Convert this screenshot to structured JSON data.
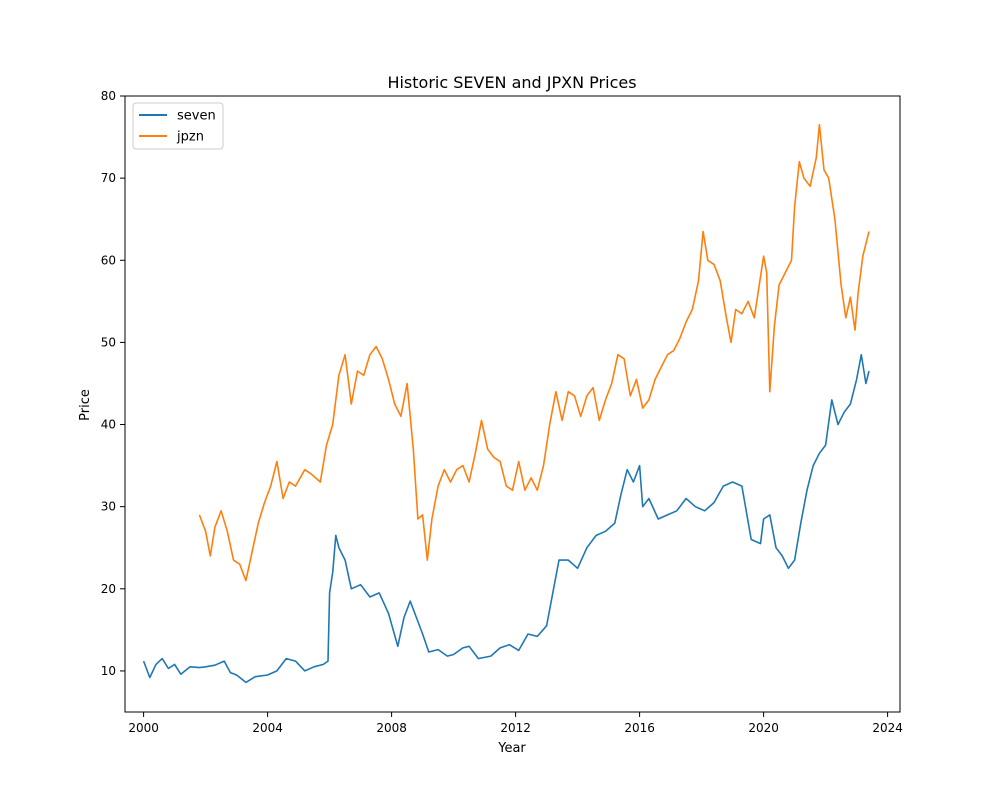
{
  "chart_data": {
    "type": "line",
    "title": "Historic SEVEN and JPXN Prices",
    "xlabel": "Year",
    "ylabel": "Price",
    "xlim": [
      1999.4,
      2024.4
    ],
    "ylim": [
      5,
      80
    ],
    "xticks": [
      2000,
      2004,
      2008,
      2012,
      2016,
      2020,
      2024
    ],
    "yticks": [
      10,
      20,
      30,
      40,
      50,
      60,
      70,
      80
    ],
    "grid": false,
    "legend": "top-left",
    "series": [
      {
        "name": "seven",
        "color": "#1f77b4",
        "points": [
          [
            2000.0,
            11.2
          ],
          [
            2000.2,
            9.2
          ],
          [
            2000.4,
            10.8
          ],
          [
            2000.6,
            11.5
          ],
          [
            2000.8,
            10.3
          ],
          [
            2001.0,
            10.8
          ],
          [
            2001.2,
            9.6
          ],
          [
            2001.5,
            10.5
          ],
          [
            2001.8,
            10.4
          ],
          [
            2002.0,
            10.5
          ],
          [
            2002.3,
            10.7
          ],
          [
            2002.6,
            11.2
          ],
          [
            2002.8,
            9.8
          ],
          [
            2003.0,
            9.5
          ],
          [
            2003.3,
            8.6
          ],
          [
            2003.6,
            9.3
          ],
          [
            2004.0,
            9.5
          ],
          [
            2004.3,
            10.0
          ],
          [
            2004.6,
            11.5
          ],
          [
            2004.9,
            11.2
          ],
          [
            2005.2,
            10.0
          ],
          [
            2005.5,
            10.5
          ],
          [
            2005.8,
            10.8
          ],
          [
            2005.95,
            11.2
          ],
          [
            2006.0,
            19.5
          ],
          [
            2006.1,
            22.0
          ],
          [
            2006.2,
            26.5
          ],
          [
            2006.3,
            25.0
          ],
          [
            2006.5,
            23.5
          ],
          [
            2006.7,
            20.0
          ],
          [
            2007.0,
            20.5
          ],
          [
            2007.3,
            19.0
          ],
          [
            2007.6,
            19.5
          ],
          [
            2007.9,
            17.0
          ],
          [
            2008.2,
            13.0
          ],
          [
            2008.4,
            16.5
          ],
          [
            2008.6,
            18.5
          ],
          [
            2008.8,
            16.5
          ],
          [
            2009.0,
            14.5
          ],
          [
            2009.2,
            12.3
          ],
          [
            2009.5,
            12.6
          ],
          [
            2009.8,
            11.8
          ],
          [
            2010.0,
            12.0
          ],
          [
            2010.3,
            12.8
          ],
          [
            2010.5,
            13.0
          ],
          [
            2010.8,
            11.5
          ],
          [
            2011.2,
            11.8
          ],
          [
            2011.5,
            12.8
          ],
          [
            2011.8,
            13.2
          ],
          [
            2012.1,
            12.5
          ],
          [
            2012.4,
            14.5
          ],
          [
            2012.7,
            14.2
          ],
          [
            2013.0,
            15.5
          ],
          [
            2013.2,
            19.5
          ],
          [
            2013.4,
            23.5
          ],
          [
            2013.7,
            23.5
          ],
          [
            2014.0,
            22.5
          ],
          [
            2014.3,
            25.0
          ],
          [
            2014.6,
            26.5
          ],
          [
            2014.9,
            27.0
          ],
          [
            2015.2,
            28.0
          ],
          [
            2015.4,
            31.5
          ],
          [
            2015.6,
            34.5
          ],
          [
            2015.8,
            33.0
          ],
          [
            2016.0,
            35.0
          ],
          [
            2016.1,
            30.0
          ],
          [
            2016.3,
            31.0
          ],
          [
            2016.6,
            28.5
          ],
          [
            2016.9,
            29.0
          ],
          [
            2017.2,
            29.5
          ],
          [
            2017.5,
            31.0
          ],
          [
            2017.8,
            30.0
          ],
          [
            2018.1,
            29.5
          ],
          [
            2018.4,
            30.5
          ],
          [
            2018.7,
            32.5
          ],
          [
            2019.0,
            33.0
          ],
          [
            2019.3,
            32.5
          ],
          [
            2019.6,
            26.0
          ],
          [
            2019.9,
            25.5
          ],
          [
            2020.0,
            28.5
          ],
          [
            2020.2,
            29.0
          ],
          [
            2020.4,
            25.0
          ],
          [
            2020.6,
            24.0
          ],
          [
            2020.8,
            22.5
          ],
          [
            2021.0,
            23.5
          ],
          [
            2021.2,
            28.0
          ],
          [
            2021.4,
            32.0
          ],
          [
            2021.6,
            35.0
          ],
          [
            2021.8,
            36.5
          ],
          [
            2022.0,
            37.5
          ],
          [
            2022.2,
            43.0
          ],
          [
            2022.4,
            40.0
          ],
          [
            2022.6,
            41.5
          ],
          [
            2022.8,
            42.5
          ],
          [
            2023.0,
            45.5
          ],
          [
            2023.15,
            48.5
          ],
          [
            2023.3,
            45.0
          ],
          [
            2023.4,
            46.5
          ]
        ]
      },
      {
        "name": "jpzn",
        "color": "#ff7f0e",
        "points": [
          [
            2001.8,
            29.0
          ],
          [
            2002.0,
            27.0
          ],
          [
            2002.15,
            24.0
          ],
          [
            2002.3,
            27.5
          ],
          [
            2002.5,
            29.5
          ],
          [
            2002.7,
            27.0
          ],
          [
            2002.9,
            23.5
          ],
          [
            2003.1,
            23.0
          ],
          [
            2003.3,
            21.0
          ],
          [
            2003.5,
            24.5
          ],
          [
            2003.7,
            28.0
          ],
          [
            2003.9,
            30.5
          ],
          [
            2004.1,
            32.5
          ],
          [
            2004.3,
            35.5
          ],
          [
            2004.5,
            31.0
          ],
          [
            2004.7,
            33.0
          ],
          [
            2004.9,
            32.5
          ],
          [
            2005.2,
            34.5
          ],
          [
            2005.4,
            34.0
          ],
          [
            2005.7,
            33.0
          ],
          [
            2005.9,
            37.5
          ],
          [
            2006.1,
            40.0
          ],
          [
            2006.3,
            46.0
          ],
          [
            2006.5,
            48.5
          ],
          [
            2006.7,
            42.5
          ],
          [
            2006.9,
            46.5
          ],
          [
            2007.1,
            46.0
          ],
          [
            2007.3,
            48.5
          ],
          [
            2007.5,
            49.5
          ],
          [
            2007.7,
            48.0
          ],
          [
            2007.9,
            45.5
          ],
          [
            2008.1,
            42.5
          ],
          [
            2008.3,
            41.0
          ],
          [
            2008.5,
            45.0
          ],
          [
            2008.7,
            37.0
          ],
          [
            2008.85,
            28.5
          ],
          [
            2009.0,
            29.0
          ],
          [
            2009.15,
            23.5
          ],
          [
            2009.3,
            28.5
          ],
          [
            2009.5,
            32.5
          ],
          [
            2009.7,
            34.5
          ],
          [
            2009.9,
            33.0
          ],
          [
            2010.1,
            34.5
          ],
          [
            2010.3,
            35.0
          ],
          [
            2010.5,
            33.0
          ],
          [
            2010.7,
            36.5
          ],
          [
            2010.9,
            40.5
          ],
          [
            2011.1,
            37.0
          ],
          [
            2011.3,
            36.0
          ],
          [
            2011.5,
            35.5
          ],
          [
            2011.7,
            32.5
          ],
          [
            2011.9,
            32.0
          ],
          [
            2012.1,
            35.5
          ],
          [
            2012.3,
            32.0
          ],
          [
            2012.5,
            33.5
          ],
          [
            2012.7,
            32.0
          ],
          [
            2012.9,
            35.0
          ],
          [
            2013.1,
            40.0
          ],
          [
            2013.3,
            44.0
          ],
          [
            2013.5,
            40.5
          ],
          [
            2013.7,
            44.0
          ],
          [
            2013.9,
            43.5
          ],
          [
            2014.1,
            41.0
          ],
          [
            2014.3,
            43.5
          ],
          [
            2014.5,
            44.5
          ],
          [
            2014.7,
            40.5
          ],
          [
            2014.9,
            43.0
          ],
          [
            2015.1,
            45.0
          ],
          [
            2015.3,
            48.5
          ],
          [
            2015.5,
            48.0
          ],
          [
            2015.7,
            43.5
          ],
          [
            2015.9,
            45.5
          ],
          [
            2016.1,
            42.0
          ],
          [
            2016.3,
            43.0
          ],
          [
            2016.5,
            45.5
          ],
          [
            2016.7,
            47.0
          ],
          [
            2016.9,
            48.5
          ],
          [
            2017.1,
            49.0
          ],
          [
            2017.3,
            50.5
          ],
          [
            2017.5,
            52.5
          ],
          [
            2017.7,
            54.0
          ],
          [
            2017.9,
            57.5
          ],
          [
            2018.05,
            63.5
          ],
          [
            2018.2,
            60.0
          ],
          [
            2018.4,
            59.5
          ],
          [
            2018.6,
            57.5
          ],
          [
            2018.8,
            53.0
          ],
          [
            2018.95,
            50.0
          ],
          [
            2019.1,
            54.0
          ],
          [
            2019.3,
            53.5
          ],
          [
            2019.5,
            55.0
          ],
          [
            2019.7,
            53.0
          ],
          [
            2019.9,
            58.0
          ],
          [
            2020.0,
            60.5
          ],
          [
            2020.1,
            58.5
          ],
          [
            2020.2,
            44.0
          ],
          [
            2020.35,
            52.0
          ],
          [
            2020.5,
            57.0
          ],
          [
            2020.7,
            58.5
          ],
          [
            2020.9,
            60.0
          ],
          [
            2021.0,
            66.5
          ],
          [
            2021.15,
            72.0
          ],
          [
            2021.3,
            70.0
          ],
          [
            2021.5,
            69.0
          ],
          [
            2021.7,
            72.5
          ],
          [
            2021.8,
            76.5
          ],
          [
            2021.95,
            71.0
          ],
          [
            2022.1,
            70.0
          ],
          [
            2022.3,
            65.0
          ],
          [
            2022.5,
            57.0
          ],
          [
            2022.65,
            53.0
          ],
          [
            2022.8,
            55.5
          ],
          [
            2022.95,
            51.5
          ],
          [
            2023.05,
            56.0
          ],
          [
            2023.2,
            60.5
          ],
          [
            2023.3,
            62.0
          ],
          [
            2023.4,
            63.5
          ]
        ]
      }
    ]
  }
}
